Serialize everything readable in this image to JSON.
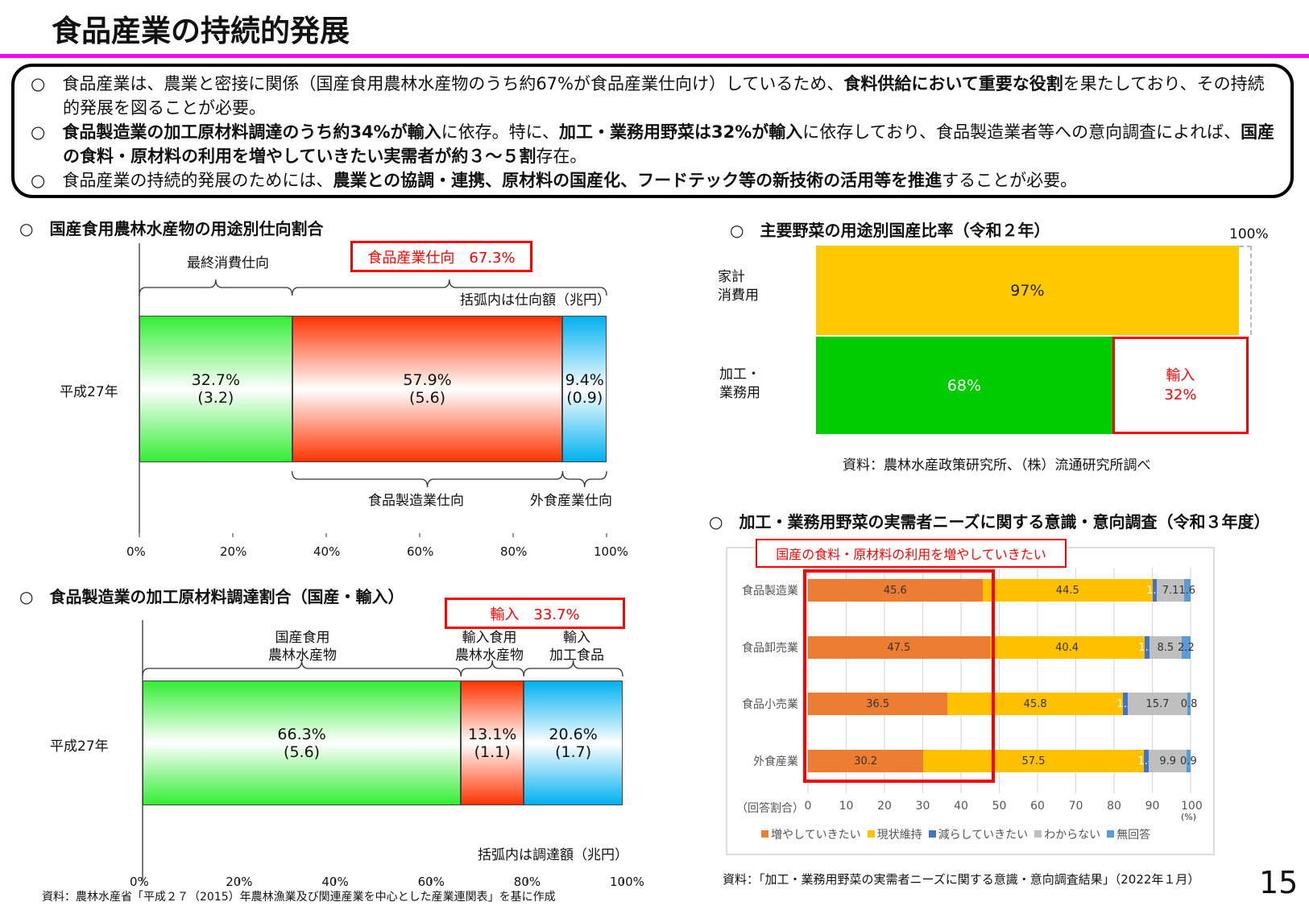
{
  "title": "食品産業の持続的発展",
  "summary": {
    "bullet_mark": "○",
    "b0": [
      "食品産業は、農業と密接に関係（国産食用農林水産物のうち約67%が食品産業仕向け）しているため、",
      "食料供給において重要な役割",
      "を果たしており、その持続的発展を図ることが必要。"
    ],
    "b1": [
      "食品製造業の加工原材料調達のうち約34%が輸入",
      "に依存。特に、",
      "加工・業務用野菜は32%が輸入",
      "に依存しており、食品製造業者等への意向調査によれば、",
      "国産の食料・原材料の利用を増やしていきたい実需者が約３～５割",
      "存在。"
    ],
    "b2": [
      "食品産業の持続的発展のためには、",
      "農業との協調・連携、原材料の国産化、フードテック等の新技術の活用等を推進",
      "することが必要。"
    ]
  },
  "chart1": {
    "heading": "○　国産食用農林水産物の用途別仕向割合",
    "row_label": "平成27年",
    "top_label": "最終消費仕向",
    "highlight": "食品産業仕向　67.3%",
    "note": "括弧内は仕向額（兆円）",
    "bottom_labels": [
      "食品製造業仕向",
      "外食産業仕向"
    ],
    "ticks": [
      "0%",
      "20%",
      "40%",
      "60%",
      "80%",
      "100%"
    ]
  },
  "chart2": {
    "heading": "○　食品製造業の加工原材料調達割合（国産・輸入）",
    "row_label": "平成27年",
    "highlight": "輸入　33.7%",
    "top_labels": [
      [
        "国産食用",
        "農林水産物"
      ],
      [
        "輸入食用",
        "農林水産物"
      ],
      [
        "輸入",
        "加工食品"
      ]
    ],
    "note": "括弧内は調達額（兆円）",
    "ticks": [
      "0%",
      "20%",
      "40%",
      "60%",
      "80%",
      "100%"
    ],
    "source": "資料：農林水産省「平成２７（2015）年農林漁業及び関連産業を中心とした産業連関表」を基に作成"
  },
  "chart3": {
    "heading": "○　主要野菜の用途別国産比率（令和２年）",
    "total_label": "100%",
    "rows": [
      [
        "家計",
        "消費用"
      ],
      [
        "加工・",
        "業務用"
      ]
    ],
    "import_label": [
      "輸入",
      "32%"
    ],
    "source": "資料：農林水産政策研究所、（株）流通研究所調べ"
  },
  "chart4": {
    "heading": "○　加工・業務用野菜の実需者ニーズに関する意識・意向調査（令和３年度）",
    "highlight": "国産の食料・原材料の利用を増やしていきたい",
    "axis_prefix": "（回答割合）",
    "unit": "(%)",
    "source": "資料：「加工・業務用野菜の実需者ニーズに関する意識・意向調査結果」（2022年１月）"
  },
  "page_number": "15",
  "chart_data": [
    {
      "type": "bar",
      "stacked": true,
      "title": "国産食用農林水産物の用途別仕向割合",
      "categories": [
        "平成27年"
      ],
      "series": [
        {
          "name": "最終消費仕向",
          "values": [
            32.7
          ],
          "label": "32.7%",
          "sub": "(3.2)",
          "color": "#33ee33"
        },
        {
          "name": "食品製造業仕向",
          "values": [
            57.9
          ],
          "label": "57.9%",
          "sub": "(5.6)",
          "color": "#ff3300"
        },
        {
          "name": "外食産業仕向",
          "values": [
            9.4
          ],
          "label": "9.4%",
          "sub": "(0.9)",
          "color": "#00b0f0"
        }
      ],
      "xlim": [
        0,
        100
      ]
    },
    {
      "type": "bar",
      "stacked": true,
      "title": "食品製造業の加工原材料調達割合（国産・輸入）",
      "categories": [
        "平成27年"
      ],
      "series": [
        {
          "name": "国産食用農林水産物",
          "values": [
            66.3
          ],
          "label": "66.3%",
          "sub": "(5.6)",
          "color": "#33ee33"
        },
        {
          "name": "輸入食用農林水産物",
          "values": [
            13.1
          ],
          "label": "13.1%",
          "sub": "(1.1)",
          "color": "#ff3300"
        },
        {
          "name": "輸入加工食品",
          "values": [
            20.6
          ],
          "label": "20.6%",
          "sub": "(1.7)",
          "color": "#00b0f0"
        }
      ],
      "xlim": [
        0,
        100
      ]
    },
    {
      "type": "bar",
      "stacked": true,
      "title": "主要野菜の用途別国産比率（令和２年）",
      "categories": [
        "家計消費用",
        "加工・業務用"
      ],
      "series": [
        {
          "name": "国産",
          "values": [
            97,
            68
          ],
          "labels": [
            "97%",
            "68%"
          ],
          "colors": [
            "#ffc800",
            "#00cc00"
          ]
        },
        {
          "name": "輸入",
          "values": [
            3,
            32
          ]
        }
      ],
      "xlim": [
        0,
        100
      ]
    },
    {
      "type": "bar",
      "stacked": true,
      "title": "加工・業務用野菜の実需者ニーズに関する意識・意向調査（令和３年度）",
      "categories": [
        "食品製造業",
        "食品卸売業",
        "食品小売業",
        "外食産業"
      ],
      "series": [
        {
          "name": "増やしていきたい",
          "values": [
            45.6,
            47.5,
            36.5,
            30.2
          ],
          "color": "#ED7D31"
        },
        {
          "name": "現状維持",
          "values": [
            44.5,
            40.4,
            45.8,
            57.5
          ],
          "color": "#FFC000"
        },
        {
          "name": "減らしていきたい",
          "values": [
            1.1,
            1.3,
            1.2,
            1.4
          ],
          "color": "#4472C4"
        },
        {
          "name": "わからない",
          "values": [
            7.1,
            8.5,
            15.7,
            9.9
          ],
          "color": "#BFBFBF"
        },
        {
          "name": "無回答",
          "values": [
            1.6,
            2.2,
            0.8,
            0.9
          ],
          "color": "#5B9BD5"
        }
      ],
      "xlim": [
        0,
        100
      ],
      "xticks": [
        "0",
        "10",
        "20",
        "30",
        "40",
        "50",
        "60",
        "70",
        "80",
        "90",
        "100"
      ],
      "grid": true,
      "legend": "bottom"
    }
  ]
}
